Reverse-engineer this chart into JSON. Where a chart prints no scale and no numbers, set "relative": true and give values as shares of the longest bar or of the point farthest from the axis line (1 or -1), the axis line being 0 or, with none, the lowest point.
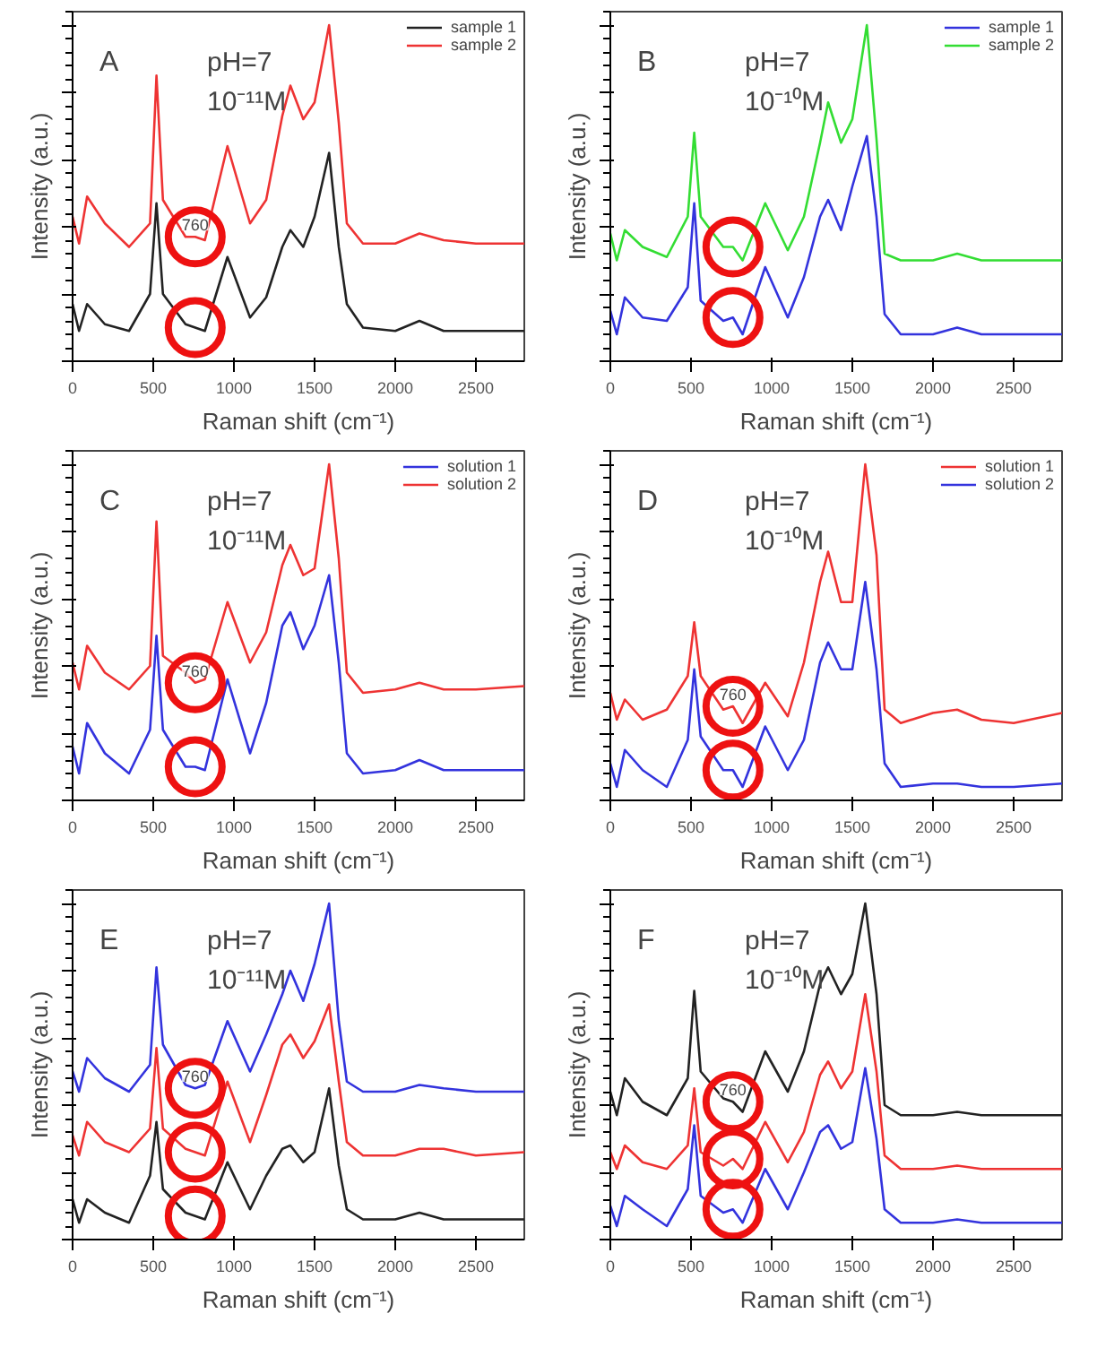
{
  "chart_data": [
    {
      "type": "line",
      "title": "A",
      "relative": true,
      "xlabel": "Raman shift (cm⁻¹)",
      "ylabel": "Intensity (a.u.)",
      "xlim": [
        0,
        2800
      ],
      "xticks": [
        0,
        500,
        1000,
        1500,
        2000,
        2500
      ],
      "grid": false,
      "legend": "top right",
      "annotations": [
        "pH=7",
        "10⁻¹¹M",
        "760"
      ],
      "x": [
        0,
        40,
        90,
        200,
        350,
        480,
        520,
        560,
        700,
        760,
        820,
        960,
        1100,
        1200,
        1300,
        1350,
        1430,
        1500,
        1590,
        1650,
        1700,
        1800,
        2000,
        2150,
        2300,
        2500,
        2800
      ],
      "series": [
        {
          "name": "sample 1",
          "color": "#222222",
          "values": [
            0.17,
            0.09,
            0.17,
            0.11,
            0.09,
            0.2,
            0.47,
            0.2,
            0.11,
            0.1,
            0.09,
            0.31,
            0.13,
            0.19,
            0.34,
            0.39,
            0.34,
            0.43,
            0.62,
            0.34,
            0.17,
            0.1,
            0.09,
            0.12,
            0.09,
            0.09,
            0.09
          ]
        },
        {
          "name": "sample 2",
          "color": "#ee3333",
          "values": [
            0.43,
            0.35,
            0.49,
            0.41,
            0.34,
            0.41,
            0.85,
            0.48,
            0.37,
            0.37,
            0.36,
            0.64,
            0.41,
            0.48,
            0.73,
            0.82,
            0.72,
            0.77,
            1.0,
            0.71,
            0.41,
            0.35,
            0.35,
            0.38,
            0.36,
            0.35,
            0.35
          ]
        }
      ]
    },
    {
      "type": "line",
      "title": "B",
      "relative": true,
      "xlabel": "Raman shift (cm⁻¹)",
      "ylabel": "Intensity (a.u.)",
      "xlim": [
        0,
        2800
      ],
      "xticks": [
        0,
        500,
        1000,
        1500,
        2000,
        2500
      ],
      "grid": false,
      "legend": "top right",
      "annotations": [
        "pH=7",
        "10⁻¹⁰M"
      ],
      "x": [
        0,
        40,
        90,
        200,
        350,
        480,
        520,
        560,
        700,
        760,
        820,
        960,
        1100,
        1200,
        1300,
        1350,
        1430,
        1500,
        1590,
        1650,
        1700,
        1800,
        2000,
        2150,
        2300,
        2500,
        2800
      ],
      "series": [
        {
          "name": "sample 1",
          "color": "#3333dd",
          "values": [
            0.15,
            0.08,
            0.19,
            0.13,
            0.12,
            0.22,
            0.47,
            0.18,
            0.12,
            0.13,
            0.08,
            0.28,
            0.13,
            0.25,
            0.43,
            0.48,
            0.39,
            0.52,
            0.67,
            0.43,
            0.14,
            0.08,
            0.08,
            0.1,
            0.08,
            0.08,
            0.08
          ]
        },
        {
          "name": "sample 2",
          "color": "#33dd33",
          "values": [
            0.38,
            0.3,
            0.39,
            0.34,
            0.31,
            0.43,
            0.68,
            0.43,
            0.34,
            0.34,
            0.3,
            0.47,
            0.33,
            0.43,
            0.65,
            0.77,
            0.65,
            0.72,
            1.0,
            0.66,
            0.32,
            0.3,
            0.3,
            0.32,
            0.3,
            0.3,
            0.3
          ]
        }
      ]
    },
    {
      "type": "line",
      "title": "C",
      "relative": true,
      "xlabel": "Raman shift (cm⁻¹)",
      "ylabel": "Intensity (a.u.)",
      "xlim": [
        0,
        2800
      ],
      "xticks": [
        0,
        500,
        1000,
        1500,
        2000,
        2500
      ],
      "grid": false,
      "legend": "top right",
      "annotations": [
        "pH=7",
        "10⁻¹¹M",
        "760"
      ],
      "x": [
        0,
        40,
        90,
        200,
        350,
        480,
        520,
        560,
        700,
        760,
        820,
        960,
        1100,
        1200,
        1300,
        1350,
        1430,
        1500,
        1590,
        1650,
        1700,
        1800,
        2000,
        2150,
        2300,
        2500,
        2800
      ],
      "series": [
        {
          "name": "solution 1",
          "color": "#3333dd",
          "values": [
            0.16,
            0.08,
            0.23,
            0.14,
            0.08,
            0.21,
            0.49,
            0.21,
            0.1,
            0.1,
            0.09,
            0.36,
            0.14,
            0.29,
            0.52,
            0.56,
            0.45,
            0.52,
            0.67,
            0.41,
            0.14,
            0.08,
            0.09,
            0.12,
            0.09,
            0.09,
            0.09
          ]
        },
        {
          "name": "solution 2",
          "color": "#ee3333",
          "values": [
            0.41,
            0.33,
            0.46,
            0.38,
            0.33,
            0.4,
            0.83,
            0.43,
            0.38,
            0.35,
            0.36,
            0.59,
            0.41,
            0.5,
            0.7,
            0.76,
            0.67,
            0.69,
            1.0,
            0.72,
            0.38,
            0.32,
            0.33,
            0.35,
            0.33,
            0.33,
            0.34
          ]
        }
      ]
    },
    {
      "type": "line",
      "title": "D",
      "relative": true,
      "xlabel": "Raman shift (cm⁻¹)",
      "ylabel": "Intensity (a.u.)",
      "xlim": [
        0,
        2800
      ],
      "xticks": [
        0,
        500,
        1000,
        1500,
        2000,
        2500
      ],
      "grid": false,
      "legend": "top right",
      "annotations": [
        "pH=7",
        "10⁻¹⁰M",
        "760"
      ],
      "x": [
        0,
        40,
        90,
        200,
        350,
        480,
        520,
        560,
        700,
        760,
        820,
        960,
        1100,
        1200,
        1300,
        1350,
        1430,
        1500,
        1580,
        1650,
        1700,
        1800,
        2000,
        2150,
        2300,
        2500,
        2800
      ],
      "series": [
        {
          "name": "solution 1",
          "color": "#ee3333",
          "values": [
            0.32,
            0.24,
            0.3,
            0.24,
            0.27,
            0.37,
            0.53,
            0.37,
            0.27,
            0.28,
            0.23,
            0.35,
            0.25,
            0.41,
            0.65,
            0.74,
            0.59,
            0.59,
            1.0,
            0.73,
            0.27,
            0.23,
            0.26,
            0.27,
            0.24,
            0.23,
            0.26
          ]
        },
        {
          "name": "solution 2",
          "color": "#3333dd",
          "values": [
            0.11,
            0.04,
            0.15,
            0.09,
            0.04,
            0.18,
            0.39,
            0.19,
            0.09,
            0.09,
            0.04,
            0.22,
            0.09,
            0.18,
            0.41,
            0.47,
            0.39,
            0.39,
            0.65,
            0.39,
            0.11,
            0.04,
            0.05,
            0.05,
            0.04,
            0.04,
            0.05
          ]
        }
      ]
    },
    {
      "type": "line",
      "title": "E",
      "relative": true,
      "xlabel": "Raman shift (cm⁻¹)",
      "ylabel": "Intensity (a.u.)",
      "xlim": [
        0,
        2800
      ],
      "xticks": [
        0,
        500,
        1000,
        1500,
        2000,
        2500
      ],
      "grid": false,
      "annotations": [
        "pH=7",
        "10⁻¹¹M",
        "760"
      ],
      "x": [
        0,
        40,
        90,
        200,
        350,
        480,
        520,
        560,
        700,
        760,
        820,
        960,
        1100,
        1200,
        1300,
        1350,
        1430,
        1500,
        1590,
        1650,
        1700,
        1800,
        2000,
        2150,
        2300,
        2500,
        2800
      ],
      "series": [
        {
          "color": "#3333dd",
          "values": [
            0.5,
            0.44,
            0.54,
            0.48,
            0.44,
            0.52,
            0.81,
            0.58,
            0.46,
            0.45,
            0.46,
            0.65,
            0.5,
            0.61,
            0.73,
            0.8,
            0.71,
            0.82,
            1.0,
            0.65,
            0.47,
            0.44,
            0.44,
            0.46,
            0.45,
            0.44,
            0.44
          ]
        },
        {
          "color": "#ee3333",
          "values": [
            0.31,
            0.25,
            0.35,
            0.29,
            0.26,
            0.33,
            0.57,
            0.33,
            0.27,
            0.26,
            0.25,
            0.47,
            0.29,
            0.43,
            0.58,
            0.61,
            0.54,
            0.59,
            0.7,
            0.47,
            0.29,
            0.25,
            0.25,
            0.27,
            0.27,
            0.25,
            0.26
          ]
        },
        {
          "color": "#222222",
          "values": [
            0.12,
            0.05,
            0.12,
            0.08,
            0.05,
            0.19,
            0.35,
            0.15,
            0.08,
            0.07,
            0.06,
            0.23,
            0.09,
            0.19,
            0.27,
            0.28,
            0.23,
            0.26,
            0.45,
            0.22,
            0.09,
            0.06,
            0.06,
            0.08,
            0.06,
            0.06,
            0.06
          ]
        }
      ]
    },
    {
      "type": "line",
      "title": "F",
      "relative": true,
      "xlabel": "Raman shift (cm⁻¹)",
      "ylabel": "Intensity (a.u.)",
      "xlim": [
        0,
        2800
      ],
      "xticks": [
        0,
        500,
        1000,
        1500,
        2000,
        2500
      ],
      "grid": false,
      "annotations": [
        "pH=7",
        "10⁻¹⁰M",
        "760"
      ],
      "x": [
        0,
        40,
        90,
        200,
        350,
        480,
        520,
        560,
        700,
        760,
        820,
        960,
        1100,
        1200,
        1300,
        1350,
        1430,
        1500,
        1580,
        1650,
        1700,
        1800,
        2000,
        2150,
        2300,
        2500,
        2800
      ],
      "series": [
        {
          "color": "#222222",
          "values": [
            0.44,
            0.37,
            0.48,
            0.41,
            0.37,
            0.48,
            0.74,
            0.5,
            0.42,
            0.41,
            0.38,
            0.56,
            0.44,
            0.56,
            0.76,
            0.81,
            0.73,
            0.79,
            1.0,
            0.73,
            0.4,
            0.37,
            0.37,
            0.38,
            0.37,
            0.37,
            0.37
          ]
        },
        {
          "color": "#ee3333",
          "values": [
            0.26,
            0.21,
            0.28,
            0.23,
            0.21,
            0.28,
            0.45,
            0.26,
            0.22,
            0.24,
            0.21,
            0.35,
            0.23,
            0.32,
            0.49,
            0.53,
            0.45,
            0.5,
            0.73,
            0.5,
            0.25,
            0.21,
            0.21,
            0.22,
            0.21,
            0.21,
            0.21
          ]
        },
        {
          "color": "#3333dd",
          "values": [
            0.1,
            0.04,
            0.13,
            0.09,
            0.04,
            0.15,
            0.34,
            0.13,
            0.08,
            0.09,
            0.05,
            0.21,
            0.09,
            0.2,
            0.32,
            0.34,
            0.27,
            0.29,
            0.51,
            0.3,
            0.09,
            0.05,
            0.05,
            0.06,
            0.05,
            0.05,
            0.05
          ]
        }
      ]
    }
  ]
}
